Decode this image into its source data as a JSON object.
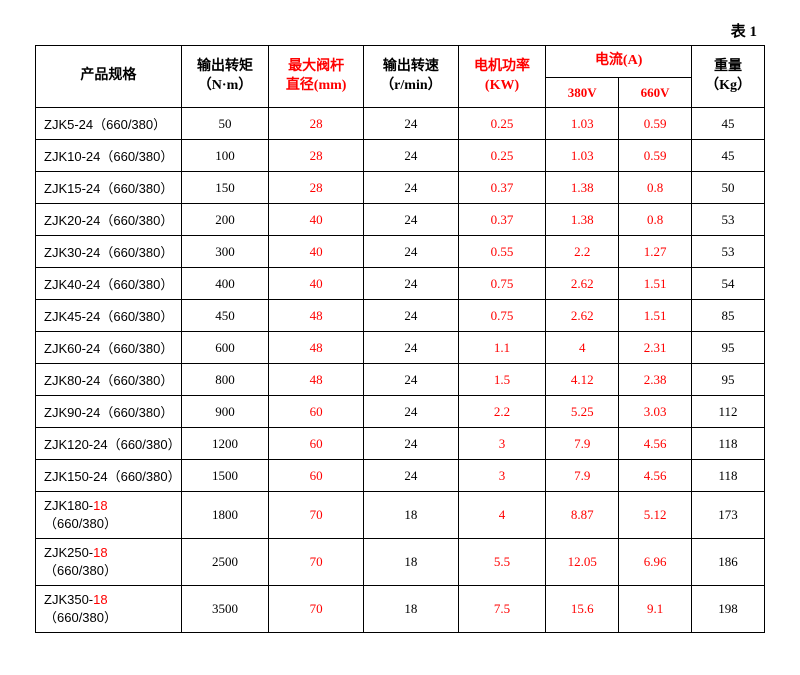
{
  "caption": "表 1",
  "headers": {
    "model": {
      "l1": "产品规格"
    },
    "torque": {
      "l1": "输出转矩",
      "l2": "（N·m）"
    },
    "stem": {
      "l1": "最大阀杆",
      "l2": "直径(mm)"
    },
    "speed": {
      "l1": "输出转速",
      "l2": "（r/min）"
    },
    "power": {
      "l1": "电机功率",
      "l2": "(KW)"
    },
    "current": {
      "l1": "电流(A)",
      "c1": "380V",
      "c2": "660V"
    },
    "weight": {
      "l1": "重量",
      "l2": "（Kg）"
    }
  },
  "rows": [
    {
      "model_p": "ZJK5-24（660/380）",
      "model_r": "",
      "torque": "50",
      "stem": "28",
      "speed": "24",
      "power": "0.25",
      "c380": "1.03",
      "c660": "0.59",
      "weight": "45"
    },
    {
      "model_p": "ZJK10-24（660/380）",
      "model_r": "",
      "torque": "100",
      "stem": "28",
      "speed": "24",
      "power": "0.25",
      "c380": "1.03",
      "c660": "0.59",
      "weight": "45"
    },
    {
      "model_p": "ZJK15-24（660/380）",
      "model_r": "",
      "torque": "150",
      "stem": "28",
      "speed": "24",
      "power": "0.37",
      "c380": "1.38",
      "c660": "0.8",
      "weight": "50"
    },
    {
      "model_p": "ZJK20-24（660/380）",
      "model_r": "",
      "torque": "200",
      "stem": "40",
      "speed": "24",
      "power": "0.37",
      "c380": "1.38",
      "c660": "0.8",
      "weight": "53"
    },
    {
      "model_p": "ZJK30-24（660/380）",
      "model_r": "",
      "torque": "300",
      "stem": "40",
      "speed": "24",
      "power": "0.55",
      "c380": "2.2",
      "c660": "1.27",
      "weight": "53"
    },
    {
      "model_p": "ZJK40-24（660/380）",
      "model_r": "",
      "torque": "400",
      "stem": "40",
      "speed": "24",
      "power": "0.75",
      "c380": "2.62",
      "c660": "1.51",
      "weight": "54"
    },
    {
      "model_p": "ZJK45-24（660/380）",
      "model_r": "",
      "torque": "450",
      "stem": "48",
      "speed": "24",
      "power": "0.75",
      "c380": "2.62",
      "c660": "1.51",
      "weight": "85"
    },
    {
      "model_p": "ZJK60-24（660/380）",
      "model_r": "",
      "torque": "600",
      "stem": "48",
      "speed": "24",
      "power": "1.1",
      "c380": "4",
      "c660": "2.31",
      "weight": "95"
    },
    {
      "model_p": "ZJK80-24（660/380）",
      "model_r": "",
      "torque": "800",
      "stem": "48",
      "speed": "24",
      "power": "1.5",
      "c380": "4.12",
      "c660": "2.38",
      "weight": "95"
    },
    {
      "model_p": "ZJK90-24（660/380）",
      "model_r": "",
      "torque": "900",
      "stem": "60",
      "speed": "24",
      "power": "2.2",
      "c380": "5.25",
      "c660": "3.03",
      "weight": "112"
    },
    {
      "model_p": "ZJK120-24（660/380）",
      "model_r": "",
      "torque": "1200",
      "stem": "60",
      "speed": "24",
      "power": "3",
      "c380": "7.9",
      "c660": "4.56",
      "weight": "118"
    },
    {
      "model_p": "ZJK150-24（660/380）",
      "model_r": "",
      "torque": "1500",
      "stem": "60",
      "speed": "24",
      "power": "3",
      "c380": "7.9",
      "c660": "4.56",
      "weight": "118"
    },
    {
      "model_p": "ZJK180-",
      "model_r": "18",
      "model_s": "（660/380）",
      "torque": "1800",
      "stem": "70",
      "speed": "18",
      "power": "4",
      "c380": "8.87",
      "c660": "5.12",
      "weight": "173"
    },
    {
      "model_p": "ZJK250-",
      "model_r": "18",
      "model_s": "（660/380）",
      "torque": "2500",
      "stem": "70",
      "speed": "18",
      "power": "5.5",
      "c380": "12.05",
      "c660": "6.96",
      "weight": "186"
    },
    {
      "model_p": "ZJK350-",
      "model_r": "18",
      "model_s": "（660/380）",
      "torque": "3500",
      "stem": "70",
      "speed": "18",
      "power": "7.5",
      "c380": "15.6",
      "c660": "9.1",
      "weight": "198"
    }
  ]
}
